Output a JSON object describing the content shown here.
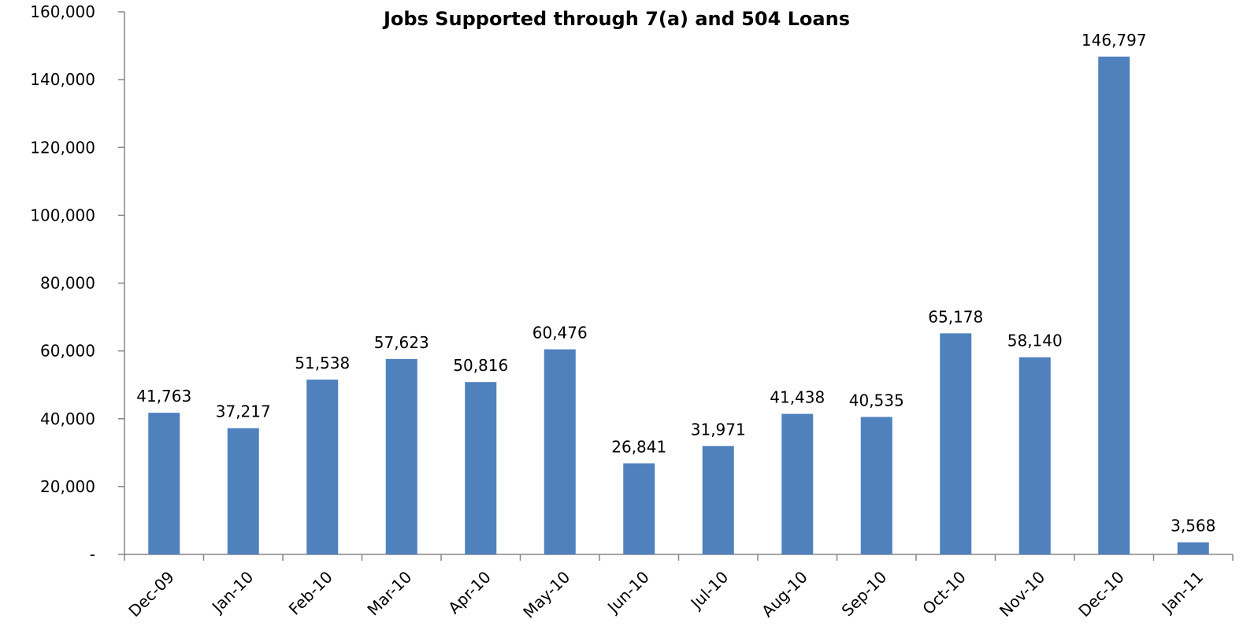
{
  "chart_data": {
    "type": "bar",
    "title": "Jobs Supported through 7(a) and 504 Loans",
    "xlabel": "",
    "ylabel": "",
    "categories": [
      "Dec-09",
      "Jan-10",
      "Feb-10",
      "Mar-10",
      "Apr-10",
      "May-10",
      "Jun-10",
      "Jul-10",
      "Aug-10",
      "Sep-10",
      "Oct-10",
      "Nov-10",
      "Dec-10",
      "Jan-11"
    ],
    "values": [
      41763,
      37217,
      51538,
      57623,
      50816,
      60476,
      26841,
      31971,
      41438,
      40535,
      65178,
      58140,
      146797,
      3568
    ],
    "data_labels": [
      "41,763",
      "37,217",
      "51,538",
      "57,623",
      "50,816",
      "60,476",
      "26,841",
      "31,971",
      "41,438",
      "40,535",
      "65,178",
      "58,140",
      "146,797",
      "3,568"
    ],
    "ylim": [
      0,
      160000
    ],
    "yticks": [
      0,
      20000,
      40000,
      60000,
      80000,
      100000,
      120000,
      140000,
      160000
    ],
    "ytick_labels": [
      "-",
      "20,000",
      "40,000",
      "60,000",
      "80,000",
      "100,000",
      "120,000",
      "140,000",
      "160,000"
    ],
    "grid": false,
    "legend": "none",
    "bar_color": "#4F81BD"
  }
}
